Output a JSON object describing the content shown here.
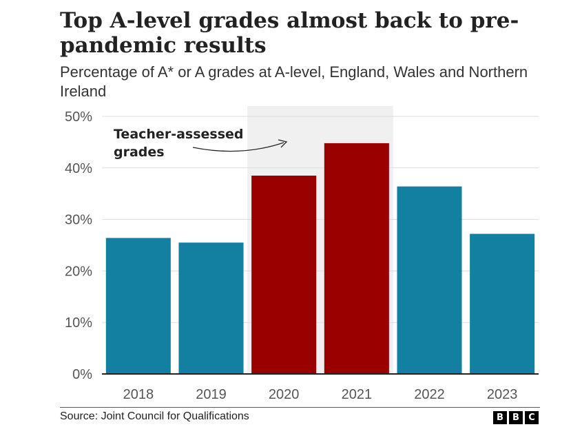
{
  "header": {
    "title": "Top A-level grades almost back to pre-pandemic results",
    "subtitle": "Percentage of A* or A grades at A-level, England, Wales and Northern Ireland"
  },
  "chart_data": {
    "type": "bar",
    "title": "Top A-level grades almost back to pre-pandemic results",
    "subtitle": "Percentage of A* or A grades at A-level, England, Wales and Northern Ireland",
    "xlabel": "",
    "ylabel": "",
    "categories": [
      "2018",
      "2019",
      "2020",
      "2021",
      "2022",
      "2023"
    ],
    "values": [
      26.4,
      25.5,
      38.5,
      44.8,
      36.4,
      27.2
    ],
    "ylim": [
      0,
      50
    ],
    "yticks": [
      0,
      10,
      20,
      30,
      40,
      50
    ],
    "ytick_labels": [
      "0%",
      "10%",
      "20%",
      "30%",
      "40%",
      "50%"
    ],
    "grid": true,
    "highlight": {
      "categories": [
        "2020",
        "2021"
      ],
      "label": [
        "Teacher-assessed",
        "grades"
      ]
    },
    "colors": {
      "default_bar": "#1380a1",
      "highlight_bar": "#990000",
      "highlight_band": "#f0f0f0",
      "gridline": "#dddddd",
      "axis": "#222222"
    }
  },
  "footer": {
    "source": "Source: Joint Council for Qualifications",
    "logo": [
      "B",
      "B",
      "C"
    ]
  }
}
